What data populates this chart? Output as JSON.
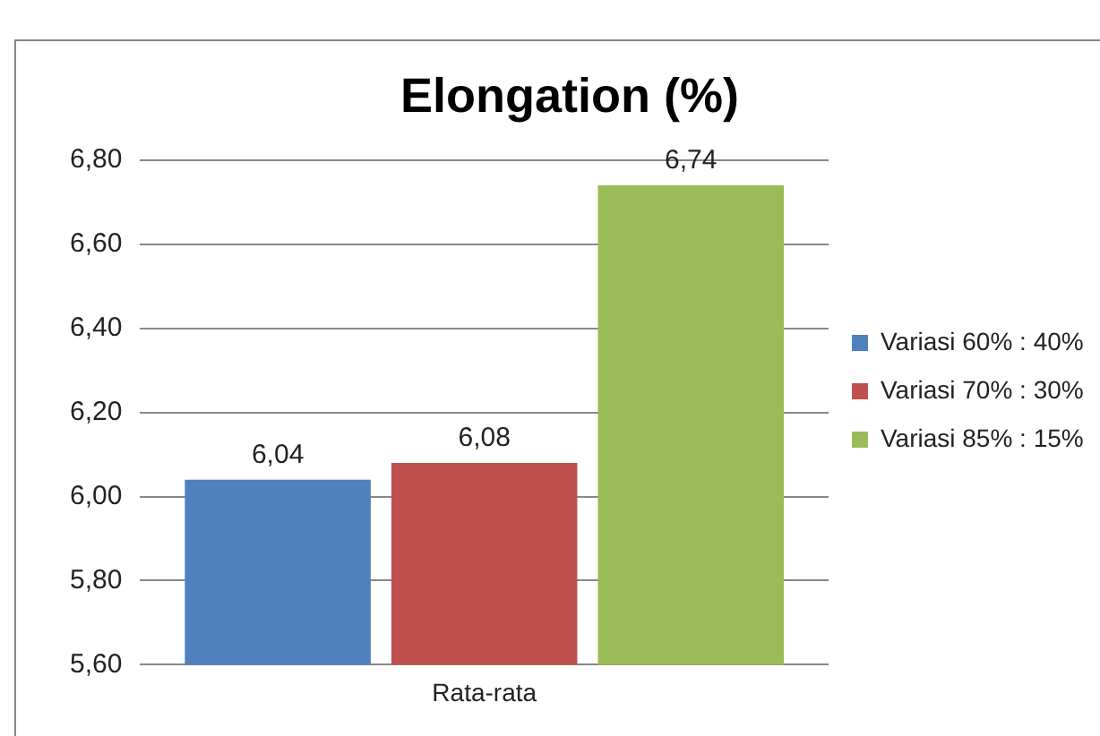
{
  "chart_data": {
    "type": "bar",
    "title": "Elongation (%)",
    "categories": [
      "Rata-rata"
    ],
    "series": [
      {
        "name": "Variasi 60% : 40%",
        "color": "#4f81bd",
        "values": [
          6.04
        ],
        "value_labels": [
          "6,04"
        ]
      },
      {
        "name": "Variasi 70% : 30%",
        "color": "#c0504d",
        "values": [
          6.08
        ],
        "value_labels": [
          "6,08"
        ]
      },
      {
        "name": "Variasi 85% : 15%",
        "color": "#9bbb59",
        "values": [
          6.74
        ],
        "value_labels": [
          "6,74"
        ]
      }
    ],
    "ylim": [
      5.6,
      6.8
    ],
    "yticks": [
      {
        "value": 5.6,
        "label": "5,60"
      },
      {
        "value": 5.8,
        "label": "5,80"
      },
      {
        "value": 6.0,
        "label": "6,00"
      },
      {
        "value": 6.2,
        "label": "6,20"
      },
      {
        "value": 6.4,
        "label": "6,40"
      },
      {
        "value": 6.6,
        "label": "6,60"
      },
      {
        "value": 6.8,
        "label": "6,80"
      }
    ],
    "grid": "y",
    "legend": "right"
  }
}
